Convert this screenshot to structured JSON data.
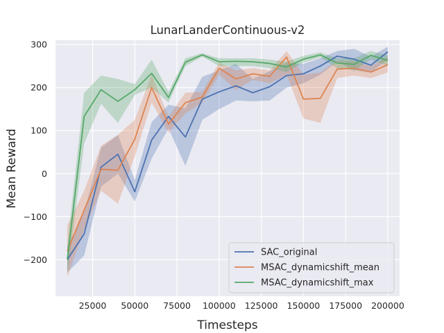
{
  "chart_data": {
    "type": "line",
    "title": "LunarLanderContinuous-v2",
    "xlabel": "Timesteps",
    "ylabel": "Mean Reward",
    "xlim": [
      3000,
      207000
    ],
    "ylim": [
      -285,
      310
    ],
    "xticks": [
      25000,
      50000,
      75000,
      100000,
      125000,
      150000,
      175000,
      200000
    ],
    "yticks": [
      -200,
      -100,
      0,
      100,
      200,
      300
    ],
    "grid": true,
    "legend_position": "lower-right",
    "x": [
      10000,
      20000,
      30000,
      40000,
      50000,
      60000,
      70000,
      80000,
      90000,
      100000,
      110000,
      120000,
      130000,
      140000,
      150000,
      160000,
      170000,
      180000,
      190000,
      200000
    ],
    "series": [
      {
        "name": "SAC_original",
        "color": "#4c72b0",
        "values": [
          -200,
          -140,
          15,
          45,
          -42,
          78,
          133,
          85,
          173,
          190,
          204,
          188,
          202,
          228,
          232,
          250,
          273,
          266,
          252,
          283
        ],
        "lower": [
          -230,
          -190,
          -30,
          0,
          -65,
          35,
          105,
          18,
          125,
          150,
          170,
          168,
          170,
          200,
          210,
          230,
          260,
          240,
          235,
          265
        ],
        "upper": [
          -170,
          -90,
          60,
          90,
          -15,
          120,
          160,
          152,
          225,
          240,
          255,
          220,
          238,
          258,
          255,
          268,
          285,
          290,
          272,
          295
        ]
      },
      {
        "name": "MSAC_dynamicshift_mean",
        "color": "#dd8452",
        "values": [
          -180,
          -85,
          10,
          8,
          80,
          200,
          115,
          165,
          178,
          245,
          220,
          232,
          226,
          271,
          173,
          175,
          243,
          245,
          236,
          253
        ],
        "lower": [
          -240,
          -130,
          -40,
          -70,
          40,
          165,
          95,
          140,
          165,
          230,
          195,
          218,
          210,
          230,
          128,
          118,
          222,
          228,
          222,
          235
        ],
        "upper": [
          -120,
          -40,
          65,
          90,
          125,
          230,
          132,
          188,
          190,
          258,
          240,
          245,
          240,
          285,
          230,
          235,
          262,
          262,
          250,
          272
        ]
      },
      {
        "name": "MSAC_dynamicshift_max",
        "color": "#55a868",
        "values": [
          -200,
          133,
          195,
          168,
          195,
          233,
          177,
          259,
          276,
          260,
          261,
          260,
          256,
          248,
          266,
          276,
          257,
          254,
          275,
          263
        ],
        "lower": [
          -235,
          70,
          162,
          118,
          183,
          200,
          165,
          250,
          272,
          250,
          250,
          250,
          245,
          236,
          258,
          270,
          245,
          240,
          265,
          250
        ],
        "upper": [
          -165,
          188,
          228,
          220,
          208,
          265,
          190,
          268,
          280,
          268,
          268,
          268,
          265,
          260,
          274,
          282,
          268,
          268,
          285,
          275
        ]
      }
    ]
  }
}
